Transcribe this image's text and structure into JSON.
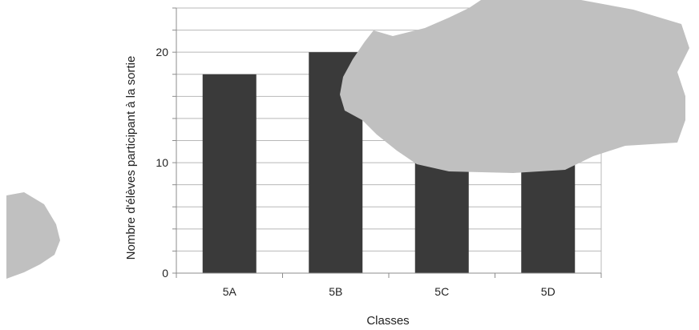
{
  "chart_data": {
    "type": "bar",
    "categories": [
      "5A",
      "5B",
      "5C",
      "5D"
    ],
    "values": [
      18,
      20,
      12,
      10
    ],
    "xlabel": "Classes",
    "ylabel": "Nombre d'élèves participant à la sortie",
    "ylim": [
      0,
      24
    ],
    "yticks": [
      0,
      10,
      20
    ],
    "grid": true,
    "legend": "none",
    "colors": {
      "bar": "#3a3a3a",
      "grid": "#b8b8b8",
      "axis": "#8c8c8c",
      "blot": "#c0c0c0"
    }
  }
}
